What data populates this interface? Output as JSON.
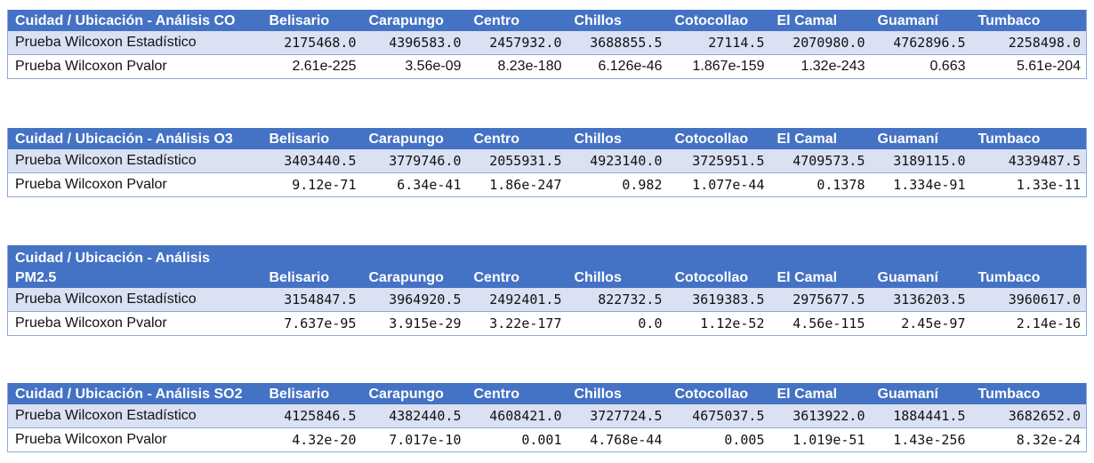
{
  "columns": [
    "Belisario",
    "Carapungo",
    "Centro",
    "Chillos",
    "Cotocollao",
    "El Camal",
    "Guamaní",
    "Tumbaco"
  ],
  "tables": [
    {
      "title": "Cuidad / Ubicación - Análisis CO",
      "row1_label": "Prueba Wilcoxon Estadístico",
      "row2_label": "Prueba Wilcoxon Pvalor",
      "row1": [
        "2175468.0",
        "4396583.0",
        "2457932.0",
        "3688855.5",
        "27114.5",
        "2070980.0",
        "4762896.5",
        "2258498.0"
      ],
      "row2": [
        "2.61e-225",
        "3.56e-09",
        "8.23e-180",
        "6.126e-46",
        "1.867e-159",
        "1.32e-243",
        "0.663",
        "5.61e-204"
      ]
    },
    {
      "title": "Cuidad / Ubicación - Análisis O3",
      "row1_label": "Prueba Wilcoxon Estadístico",
      "row2_label": "Prueba Wilcoxon Pvalor",
      "row1": [
        "3403440.5",
        "3779746.0",
        "2055931.5",
        "4923140.0",
        "3725951.5",
        "4709573.5",
        "3189115.0",
        "4339487.5"
      ],
      "row2": [
        "9.12e-71",
        "6.34e-41",
        "1.86e-247",
        "0.982",
        "1.077e-44",
        "0.1378",
        "1.334e-91",
        "1.33e-11"
      ]
    },
    {
      "title": "Cuidad / Ubicación - Análisis PM2.5",
      "row1_label": "Prueba Wilcoxon Estadístico",
      "row2_label": "Prueba Wilcoxon Pvalor",
      "row1": [
        "3154847.5",
        "3964920.5",
        "2492401.5",
        "822732.5",
        "3619383.5",
        "2975677.5",
        "3136203.5",
        "3960617.0"
      ],
      "row2": [
        "7.637e-95",
        "3.915e-29",
        "3.22e-177",
        "0.0",
        "1.12e-52",
        "4.56e-115",
        "2.45e-97",
        "2.14e-16"
      ]
    },
    {
      "title": "Cuidad / Ubicación - Análisis SO2",
      "row1_label": "Prueba Wilcoxon Estadístico",
      "row2_label": "Prueba Wilcoxon Pvalor",
      "row1": [
        "4125846.5",
        "4382440.5",
        "4608421.0",
        "3727724.5",
        "4675037.5",
        "3613922.0",
        "1884441.5",
        "3682652.0"
      ],
      "row2": [
        "4.32e-20",
        "7.017e-10",
        "0.001",
        "4.768e-44",
        "0.005",
        "1.019e-51",
        "1.43e-256",
        "8.32e-24"
      ]
    }
  ],
  "colors": {
    "header_bg": "#4472c4",
    "header_text": "#ffffff",
    "band_row": "#d9e1f2",
    "border": "#8ea9db"
  }
}
